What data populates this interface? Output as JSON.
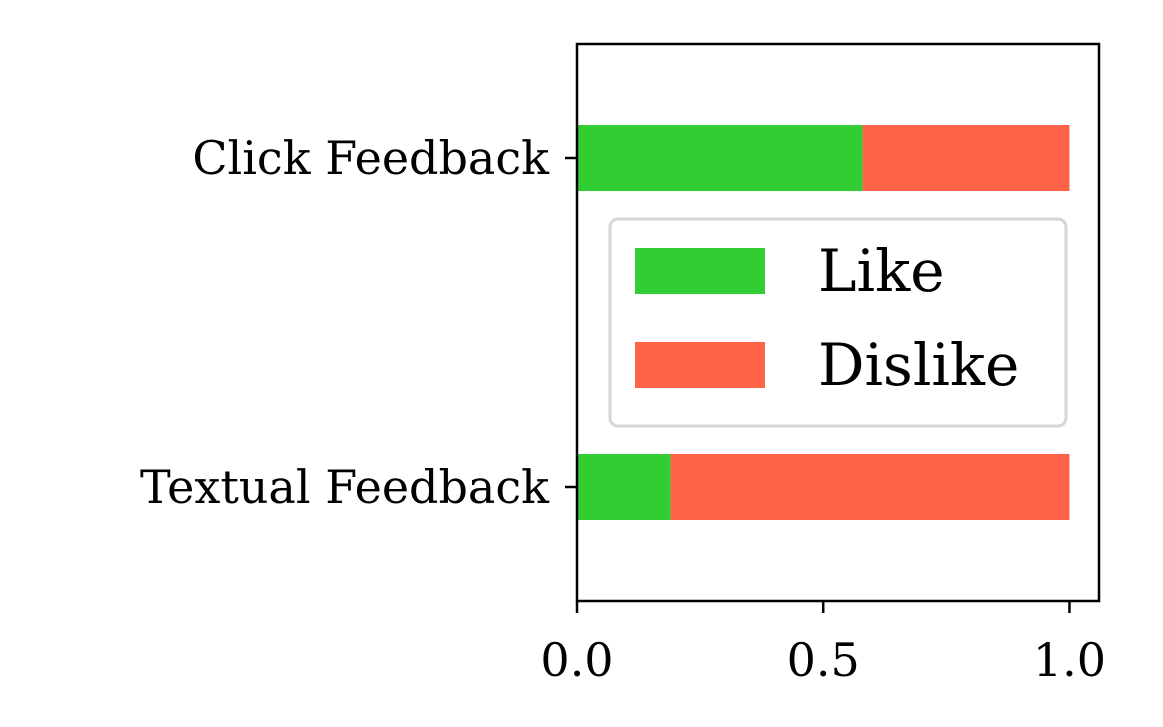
{
  "chart_data": {
    "type": "bar",
    "orientation": "horizontal",
    "stacked": true,
    "categories": [
      "Click Feedback",
      "Textual Feedback"
    ],
    "series": [
      {
        "name": "Like",
        "color": "#32CD32",
        "values": [
          0.58,
          0.19
        ]
      },
      {
        "name": "Dislike",
        "color": "#FF6347",
        "values": [
          0.42,
          0.81
        ]
      }
    ],
    "xlim": [
      0,
      1.06
    ],
    "x_ticks": [
      "0.0",
      "0.5",
      "1.0"
    ],
    "x_tick_values": [
      0,
      0.5,
      1.0
    ],
    "title": "",
    "xlabel": "",
    "ylabel": "",
    "grid": false,
    "legend_position": "center-right"
  }
}
